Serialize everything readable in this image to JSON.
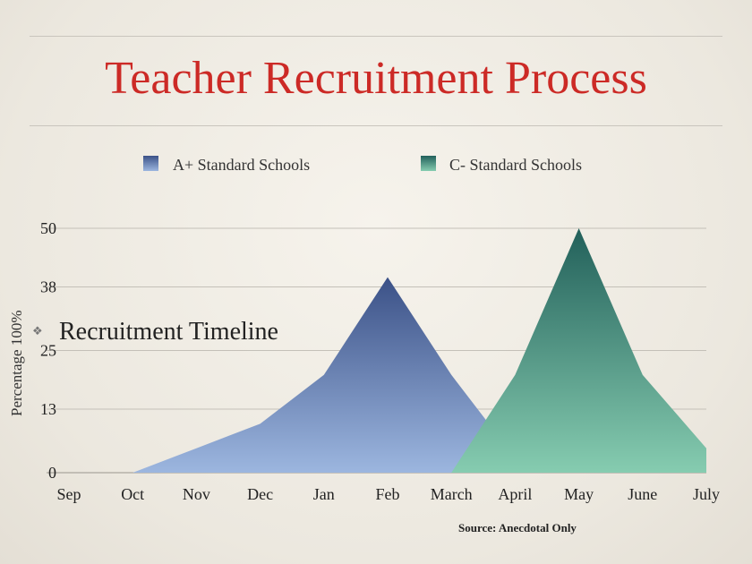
{
  "chart_data": {
    "type": "area",
    "title": "Teacher Recruitment Process",
    "ylabel": "Percentage 100%",
    "xlabel": "",
    "categories": [
      "Sep",
      "Oct",
      "Nov",
      "Dec",
      "Jan",
      "Feb",
      "March",
      "April",
      "May",
      "June",
      "July"
    ],
    "yticks": [
      "0",
      "13",
      "25",
      "38",
      "50"
    ],
    "ylim": [
      0,
      50
    ],
    "grid": true,
    "legend_position": "top",
    "series": [
      {
        "name": "A+ Standard Schools",
        "values": [
          0,
          0,
          5,
          10,
          20,
          40,
          20,
          3,
          2,
          0,
          0
        ],
        "color_top": "#3b5187",
        "color_bottom": "#9cb6df"
      },
      {
        "name": "C- Standard Schools",
        "values": [
          0,
          0,
          0,
          0,
          0,
          0,
          0,
          20,
          50,
          20,
          5
        ],
        "color_top": "#22605a",
        "color_bottom": "#86ccb0"
      }
    ],
    "annotation": "Recruitment Timeline",
    "source": "Source: Anecdotal Only"
  }
}
